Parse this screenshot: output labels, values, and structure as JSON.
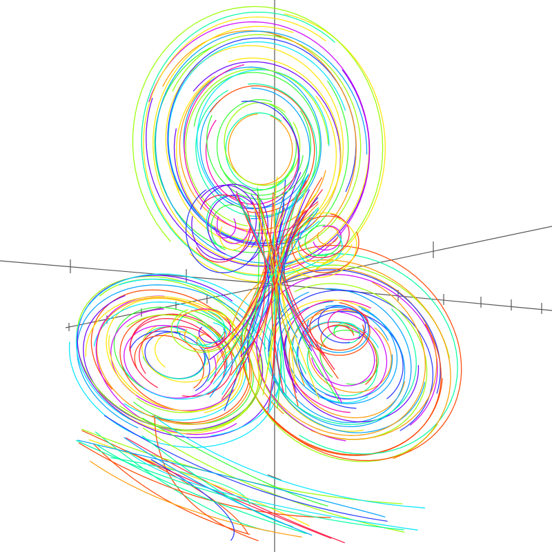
{
  "scene": {
    "background": "#ffffff",
    "axis_color": "#555555",
    "palette": [
      "#ff1744",
      "#ff00aa",
      "#cc00ff",
      "#6a00ff",
      "#2233ff",
      "#00a2ff",
      "#00e5ff",
      "#00ffa2",
      "#33ff33",
      "#99ff00",
      "#ffe600",
      "#ff9900",
      "#ff4400"
    ]
  }
}
